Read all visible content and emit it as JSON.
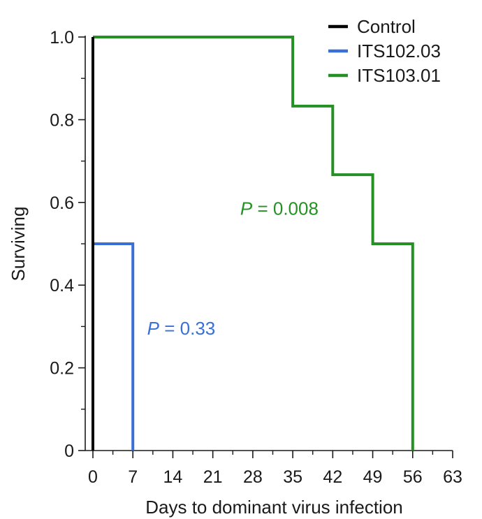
{
  "chart_data": {
    "type": "line",
    "step": true,
    "xlabel": "Days to dominant virus infection",
    "ylabel": "Surviving",
    "xlim": [
      0,
      63
    ],
    "ylim": [
      0,
      1.0
    ],
    "xticks": [
      0,
      7,
      14,
      21,
      28,
      35,
      42,
      49,
      56,
      63
    ],
    "xticks_minor": [
      3.5,
      10.5,
      17.5,
      24.5,
      31.5,
      38.5,
      45.5,
      52.5,
      59.5
    ],
    "yticks": [
      0,
      0.2,
      0.4,
      0.6,
      0.8,
      1.0
    ],
    "yticks_minor": [
      0.1,
      0.3,
      0.5,
      0.7,
      0.9
    ],
    "ytick_labels": [
      "0",
      "0.2",
      "0.4",
      "0.6",
      "0.8",
      "1.0"
    ],
    "grid": false,
    "legend_position": "top-right",
    "series": [
      {
        "name": "Control",
        "color": "#000000",
        "points": [
          [
            0,
            1.0
          ],
          [
            0,
            0.5
          ],
          [
            0,
            0
          ]
        ]
      },
      {
        "name": "ITS102.03",
        "color": "#3a6fd8",
        "points": [
          [
            0,
            1.0
          ],
          [
            0,
            0.5
          ],
          [
            7,
            0.5
          ],
          [
            7,
            0
          ]
        ]
      },
      {
        "name": "ITS103.01",
        "color": "#259125",
        "points": [
          [
            0,
            1.0
          ],
          [
            35,
            1.0
          ],
          [
            35,
            0.833
          ],
          [
            42,
            0.833
          ],
          [
            42,
            0.667
          ],
          [
            49,
            0.667
          ],
          [
            49,
            0.5
          ],
          [
            56,
            0.5
          ],
          [
            56,
            0
          ]
        ]
      }
    ],
    "annotations": [
      {
        "italic": "P",
        "text": " = 0.33",
        "x": 9.5,
        "y": 0.28,
        "color": "#3a6fd8"
      },
      {
        "italic": "P",
        "text": " = 0.008",
        "x": 25.8,
        "y": 0.57,
        "color": "#259125"
      }
    ]
  }
}
